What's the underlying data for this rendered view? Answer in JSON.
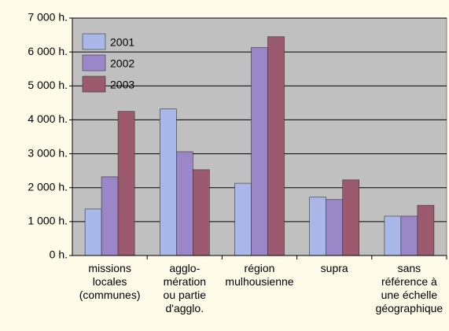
{
  "chart_data": {
    "type": "bar",
    "categories": [
      "missions\nlocales\n(communes)",
      "agglo-\nmération\nou partie\nd'agglo.",
      "région\nmulhousienne",
      "supra",
      "sans\nréférence à\nune échelle\ngéographique"
    ],
    "series": [
      {
        "name": "2001",
        "color": "#a9b8e8",
        "values": [
          1370,
          4320,
          2130,
          1720,
          1160
        ]
      },
      {
        "name": "2002",
        "color": "#9b86c8",
        "values": [
          2320,
          3060,
          6130,
          1650,
          1160
        ]
      },
      {
        "name": "2003",
        "color": "#9b5a6e",
        "values": [
          4250,
          2530,
          6450,
          2230,
          1480
        ]
      }
    ],
    "ylim": [
      0,
      7000
    ],
    "yticks": [
      {
        "value": 0,
        "label": "0 h."
      },
      {
        "value": 1000,
        "label": "1 000 h."
      },
      {
        "value": 2000,
        "label": "2 000 h."
      },
      {
        "value": 3000,
        "label": "3 000 h."
      },
      {
        "value": 4000,
        "label": "4 000 h."
      },
      {
        "value": 5000,
        "label": "5 000 h."
      },
      {
        "value": 6000,
        "label": "6 000 h."
      },
      {
        "value": 7000,
        "label": "7 000 h."
      }
    ],
    "grid": true,
    "legend": "top-left"
  }
}
